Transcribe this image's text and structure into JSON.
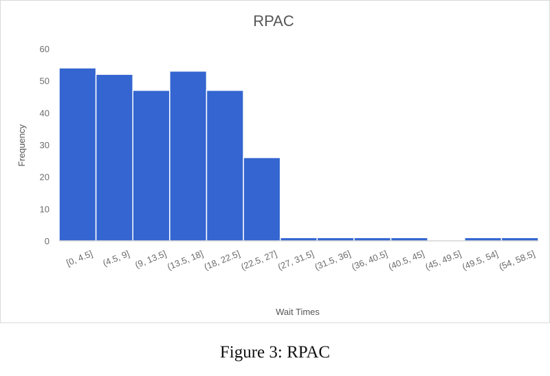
{
  "chart_data": {
    "type": "bar",
    "title": "RPAC",
    "xlabel": "Wait Times",
    "ylabel": "Frequency",
    "ylim": [
      0,
      60
    ],
    "yticks": [
      0,
      10,
      20,
      30,
      40,
      50,
      60
    ],
    "grid": false,
    "legend": "none",
    "categories": [
      "[0, 4.5]",
      "(4.5, 9]",
      "(9, 13.5]",
      "(13.5, 18]",
      "(18, 22.5]",
      "(22.5, 27]",
      "(27, 31.5]",
      "(31.5, 36]",
      "(36, 40.5]",
      "(40.5, 45]",
      "(45, 49.5]",
      "(49.5, 54]",
      "(54, 58.5]"
    ],
    "values": [
      54,
      52,
      47,
      53,
      47,
      26,
      1,
      1,
      1,
      1,
      0,
      1,
      1
    ],
    "colors": {
      "bar": "#3465d0",
      "bar_edge": "#ffffff",
      "axis": "#bfbfbf",
      "frame": "#d9d9d9"
    }
  },
  "caption": "Figure 3: RPAC"
}
